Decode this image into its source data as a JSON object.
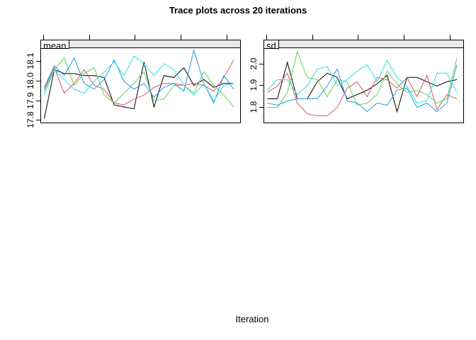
{
  "title": "Trace plots across 20 iterations",
  "xlabel": "Iteration",
  "palette": {
    "black": "#000000",
    "red": "#DF536B",
    "green": "#61D04F",
    "blue": "#2297E6",
    "cyan": "#28E2E5",
    "strip_bg": "#e8e8e8",
    "axis": "#000000"
  },
  "chart_data": {
    "type": "line",
    "title": "Trace plots across 20 iterations",
    "xlabel": "Iteration",
    "x": [
      1,
      2,
      3,
      4,
      5,
      6,
      7,
      8,
      9,
      10,
      11,
      12,
      13,
      14,
      15,
      16,
      17,
      18,
      19,
      20
    ],
    "xlim": [
      1,
      20
    ],
    "grid": false,
    "legend": null,
    "panels": [
      {
        "label": "mean",
        "ylim": [
          17.79,
          18.17
        ],
        "yticks": [
          17.8,
          17.9,
          18.0,
          18.1
        ],
        "ytick_labels": [
          "17.8",
          "17.9",
          "18.0",
          "18.1"
        ],
        "series": [
          {
            "name": "chain-black",
            "color": "#000000",
            "values": [
              17.81,
              18.06,
              18.04,
              18.04,
              18.03,
              18.03,
              18.02,
              17.88,
              17.87,
              17.86,
              18.1,
              17.87,
              18.03,
              18.02,
              18.07,
              17.98,
              18.01,
              17.97,
              17.99,
              17.99
            ]
          },
          {
            "name": "chain-red",
            "color": "#DF536B",
            "values": [
              17.96,
              18.07,
              17.94,
              17.99,
              18.06,
              17.98,
              17.96,
              17.89,
              17.88,
              17.91,
              17.93,
              17.97,
              17.99,
              17.99,
              17.98,
              17.99,
              17.98,
              17.95,
              18.02,
              18.11
            ]
          },
          {
            "name": "chain-green",
            "color": "#61D04F",
            "values": [
              17.95,
              18.06,
              18.12,
              17.98,
              18.04,
              18.07,
              17.93,
              17.89,
              17.94,
              17.99,
              18.05,
              17.9,
              17.91,
              17.98,
              17.98,
              17.94,
              18.05,
              17.98,
              17.93,
              17.87
            ]
          },
          {
            "name": "chain-blue",
            "color": "#2297E6",
            "values": [
              17.97,
              18.08,
              18.03,
              18.12,
              17.99,
              17.96,
              18.01,
              18.11,
              18.0,
              17.96,
              17.99,
              17.92,
              17.97,
              17.99,
              17.95,
              18.16,
              17.99,
              17.89,
              18.03,
              17.96
            ]
          },
          {
            "name": "chain-cyan",
            "color": "#28E2E5",
            "values": [
              17.93,
              18.06,
              18.01,
              17.96,
              17.94,
              18.0,
              18.05,
              18.1,
              18.03,
              18.13,
              18.09,
              18.03,
              18.09,
              18.06,
              17.98,
              17.93,
              17.99,
              17.9,
              17.98,
              17.99
            ]
          }
        ]
      },
      {
        "label": "sd",
        "ylim": [
          1.729,
          2.077
        ],
        "yticks": [
          1.8,
          1.9,
          2.0
        ],
        "ytick_labels": [
          "1.8",
          "1.9",
          "2.0"
        ],
        "series": [
          {
            "name": "chain-black",
            "color": "#000000",
            "values": [
              1.84,
              1.84,
              2.01,
              1.84,
              1.84,
              1.92,
              1.96,
              1.94,
              1.84,
              1.86,
              1.88,
              1.91,
              1.95,
              1.78,
              1.94,
              1.94,
              1.92,
              1.9,
              1.92,
              1.93
            ]
          },
          {
            "name": "chain-red",
            "color": "#DF536B",
            "values": [
              1.87,
              1.9,
              1.96,
              1.82,
              1.77,
              1.76,
              1.76,
              1.8,
              1.89,
              1.92,
              1.85,
              1.94,
              1.93,
              1.89,
              1.94,
              1.85,
              1.95,
              1.79,
              1.86,
              1.84
            ]
          },
          {
            "name": "chain-green",
            "color": "#61D04F",
            "values": [
              1.8,
              1.8,
              1.87,
              2.06,
              1.94,
              1.93,
              1.85,
              1.93,
              1.92,
              1.81,
              1.82,
              1.86,
              1.97,
              1.91,
              1.87,
              1.88,
              1.86,
              1.82,
              1.84,
              2.03
            ]
          },
          {
            "name": "chain-blue",
            "color": "#2297E6",
            "values": [
              1.82,
              1.81,
              1.83,
              1.84,
              1.84,
              1.84,
              1.9,
              1.98,
              1.83,
              1.82,
              1.78,
              1.82,
              1.81,
              1.88,
              1.89,
              1.8,
              1.82,
              1.78,
              1.82,
              2.0
            ]
          },
          {
            "name": "chain-cyan",
            "color": "#28E2E5",
            "values": [
              1.88,
              1.93,
              1.93,
              1.86,
              1.9,
              1.98,
              1.99,
              1.9,
              1.93,
              1.97,
              2.0,
              1.92,
              2.02,
              1.94,
              1.9,
              1.82,
              1.83,
              1.96,
              1.96,
              1.87
            ]
          }
        ]
      }
    ]
  }
}
